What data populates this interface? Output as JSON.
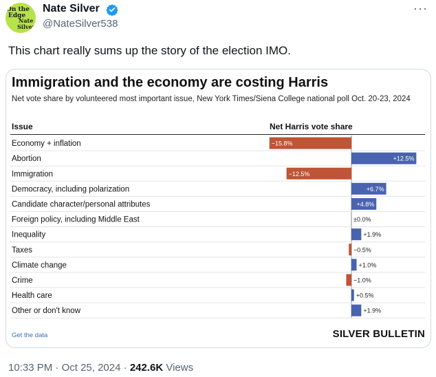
{
  "tweet": {
    "author": {
      "display_name": "Nate Silver",
      "handle": "@NateSilver538",
      "verified": true,
      "avatar_text": [
        "On the",
        "Edge",
        "Nate",
        "Silver"
      ]
    },
    "text": "This chart really sums up the story of the election IMO.",
    "time": "10:33 PM",
    "date": "Oct 25, 2024",
    "views_count": "242.6K",
    "views_label": "Views"
  },
  "colors": {
    "positive": "#4a63b0",
    "negative": "#bd5536",
    "verified": "#1d9bf0"
  },
  "chart_card": {
    "get_data_label": "Get the data",
    "brand": "SILVER BULLETIN"
  },
  "chart_data": {
    "type": "bar",
    "orientation": "horizontal",
    "title": "Immigration and the economy are costing Harris",
    "subtitle": "Net vote share by volunteered most important issue, New York Times/Siena College national poll Oct. 20-23, 2024",
    "category_header": "Issue",
    "value_header": "Net Harris vote share",
    "categories": [
      "Economy + inflation",
      "Abortion",
      "Immigration",
      "Democracy, including polarization",
      "Candidate character/personal attributes",
      "Foreign policy, including Middle East",
      "Inequality",
      "Taxes",
      "Climate change",
      "Crime",
      "Health care",
      "Other or don't know"
    ],
    "values": [
      -15.8,
      12.5,
      -12.5,
      6.7,
      4.8,
      0.0,
      1.9,
      -0.5,
      1.0,
      -1.0,
      0.5,
      1.9
    ],
    "labels": [
      "−15.8%",
      "+12.5%",
      "−12.5%",
      "+6.7%",
      "+4.8%",
      "±0.0%",
      "+1.9%",
      "−0.5%",
      "+1.0%",
      "−1.0%",
      "+0.5%",
      "+1.9%"
    ],
    "xlim": [
      -16,
      12.5
    ]
  }
}
